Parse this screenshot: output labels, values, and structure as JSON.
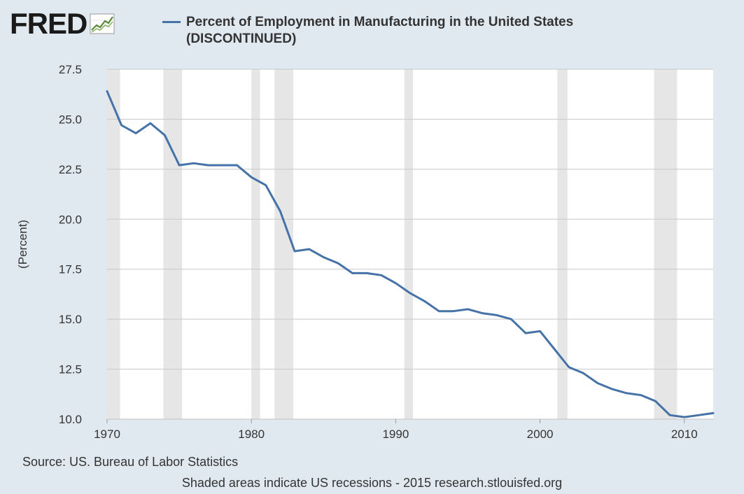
{
  "brand": {
    "logo_text": "FRED",
    "logo_icon": "trend-chart-icon",
    "logo_icon_color": "#5a8a3a"
  },
  "chart_data": {
    "type": "line",
    "title": "Percent of Employment in Manufacturing in the United States (DISCONTINUED)",
    "ylabel": "(Percent)",
    "xlabel": "",
    "xlim": [
      1970,
      2012
    ],
    "ylim": [
      10.0,
      27.5
    ],
    "yticks": [
      "10.0",
      "12.5",
      "15.0",
      "17.5",
      "20.0",
      "22.5",
      "25.0",
      "27.5"
    ],
    "xticks": [
      "1970",
      "1980",
      "1990",
      "2000",
      "2010"
    ],
    "grid": true,
    "legend_position": "top",
    "line_color": "#4572a7",
    "recession_color": "#e6e6e6",
    "recessions": [
      [
        1970.0,
        1970.9
      ],
      [
        1973.9,
        1975.2
      ],
      [
        1980.0,
        1980.6
      ],
      [
        1981.6,
        1982.9
      ],
      [
        1990.6,
        1991.2
      ],
      [
        2001.2,
        2001.9
      ],
      [
        2007.9,
        2009.5
      ]
    ],
    "series": [
      {
        "name": "Percent of Employment in Manufacturing in the United States (DISCONTINUED)",
        "x": [
          1970,
          1971,
          1972,
          1973,
          1974,
          1975,
          1976,
          1977,
          1978,
          1979,
          1980,
          1981,
          1982,
          1983,
          1984,
          1985,
          1986,
          1987,
          1988,
          1989,
          1990,
          1991,
          1992,
          1993,
          1994,
          1995,
          1996,
          1997,
          1998,
          1999,
          2000,
          2001,
          2002,
          2003,
          2004,
          2005,
          2006,
          2007,
          2008,
          2009,
          2010,
          2011,
          2012
        ],
        "values": [
          26.4,
          24.7,
          24.3,
          24.8,
          24.2,
          22.7,
          22.8,
          22.7,
          22.7,
          22.7,
          22.1,
          21.7,
          20.4,
          18.4,
          18.5,
          18.1,
          17.8,
          17.3,
          17.3,
          17.2,
          16.8,
          16.3,
          15.9,
          15.4,
          15.4,
          15.5,
          15.3,
          15.2,
          15.0,
          14.3,
          14.4,
          13.5,
          12.6,
          12.3,
          11.8,
          11.5,
          11.3,
          11.2,
          10.9,
          10.2,
          10.1,
          10.2,
          10.3
        ]
      }
    ]
  },
  "footer": {
    "source": "Source: US. Bureau of Labor Statistics",
    "note": "Shaded areas indicate US recessions - 2015 research.stlouisfed.org"
  }
}
